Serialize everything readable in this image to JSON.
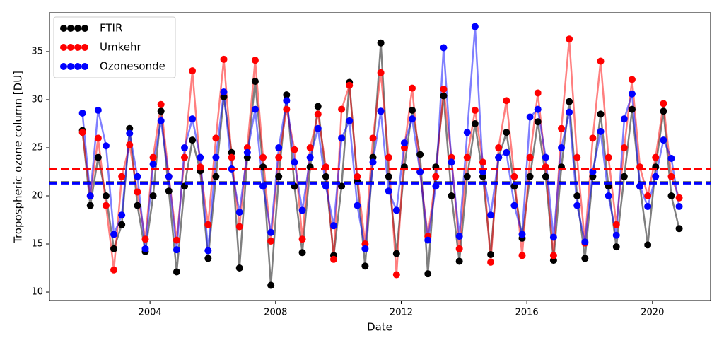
{
  "chart_data": {
    "type": "line-scatter",
    "x_label": "Date",
    "y_label": "Tropospheric ozone column [DU]",
    "xlim": [
      2000.8,
      2021.85
    ],
    "ylim": [
      9.12,
      39.04
    ],
    "xticks": [
      2004,
      2008,
      2012,
      2016,
      2020
    ],
    "yticks": [
      10,
      15,
      20,
      25,
      30,
      35
    ],
    "legend": "upper left",
    "x": [
      2001.85,
      2002.1,
      2002.35,
      2002.6,
      2002.85,
      2003.1,
      2003.35,
      2003.6,
      2003.85,
      2004.1,
      2004.35,
      2004.6,
      2004.85,
      2005.1,
      2005.35,
      2005.6,
      2005.85,
      2006.1,
      2006.35,
      2006.6,
      2006.85,
      2007.1,
      2007.35,
      2007.6,
      2007.85,
      2008.1,
      2008.35,
      2008.6,
      2008.85,
      2009.1,
      2009.35,
      2009.6,
      2009.85,
      2010.1,
      2010.35,
      2010.6,
      2010.85,
      2011.1,
      2011.35,
      2011.6,
      2011.85,
      2012.1,
      2012.35,
      2012.6,
      2012.85,
      2013.1,
      2013.35,
      2013.6,
      2013.85,
      2014.1,
      2014.35,
      2014.6,
      2014.85,
      2015.1,
      2015.35,
      2015.6,
      2015.85,
      2016.1,
      2016.35,
      2016.6,
      2016.85,
      2017.1,
      2017.35,
      2017.6,
      2017.85,
      2018.1,
      2018.35,
      2018.6,
      2018.85,
      2019.1,
      2019.35,
      2019.6,
      2019.85,
      2020.1,
      2020.35,
      2020.6,
      2020.85
    ],
    "series": [
      {
        "name": "FTIR",
        "color": "#000000",
        "values": [
          26.8,
          19,
          24,
          20,
          14.5,
          17,
          27,
          19,
          14.2,
          20,
          28.8,
          20.5,
          12.1,
          21,
          25.8,
          22.6,
          13.5,
          22,
          30.3,
          24.5,
          12.5,
          24,
          31.9,
          23,
          10.7,
          22,
          30.5,
          21,
          14.1,
          23,
          29.3,
          22,
          13.8,
          21,
          31.8,
          21.5,
          12.7,
          24,
          35.9,
          22,
          14,
          23,
          28.9,
          24.3,
          11.9,
          23,
          30.4,
          20,
          13.2,
          22,
          27.5,
          22,
          13.9,
          24,
          26.6,
          21,
          15.6,
          22,
          27.7,
          22,
          13.3,
          23,
          29.8,
          20,
          13.5,
          22,
          28.5,
          21,
          14.7,
          22,
          29,
          21,
          14.9,
          23,
          28.8,
          20,
          16.6
        ]
      },
      {
        "name": "Umkehr",
        "color": "#ff0000",
        "values": [
          26.6,
          20,
          26,
          19,
          12.3,
          22,
          25.3,
          20.4,
          15.5,
          24,
          29.5,
          22,
          15.4,
          24,
          33,
          23,
          17,
          26,
          34.2,
          24,
          16.8,
          25,
          34.1,
          24,
          15.3,
          24,
          29,
          24.8,
          15.5,
          25,
          28.5,
          23,
          13.4,
          29,
          31.5,
          22,
          15,
          26,
          32.8,
          24,
          11.8,
          25,
          31.2,
          22.5,
          15.8,
          22,
          31.1,
          24,
          14.5,
          24,
          28.9,
          23.5,
          13.1,
          25,
          29.9,
          22,
          13.8,
          24,
          30.7,
          23,
          13.8,
          27,
          36.3,
          24,
          15.1,
          26,
          34,
          24,
          17,
          25,
          32.1,
          23,
          20,
          24,
          29.6,
          22,
          19.8
        ]
      },
      {
        "name": "Ozonesonde",
        "color": "#0000ff",
        "values": [
          28.6,
          20,
          28.9,
          25.2,
          16,
          18,
          26.5,
          22,
          14.5,
          23.3,
          27.8,
          22,
          14.4,
          25,
          28,
          24,
          14.3,
          24,
          30.8,
          22.8,
          18.3,
          24.5,
          29,
          21,
          16.2,
          25,
          29.9,
          23.5,
          18.5,
          24,
          27,
          21,
          16.9,
          26,
          27.8,
          19,
          14.5,
          23.5,
          28.8,
          20.5,
          18.5,
          25.5,
          28,
          22.5,
          15.4,
          21,
          35.4,
          23.5,
          15.8,
          26.6,
          37.6,
          22.5,
          18,
          24,
          24.5,
          19,
          16,
          28.2,
          29,
          24,
          15.7,
          25,
          28.7,
          19,
          15.2,
          22.5,
          26.7,
          20,
          15.9,
          28,
          30.6,
          21,
          18.9,
          22,
          25.8,
          23.9,
          18.9
        ]
      }
    ],
    "mean_lines": [
      {
        "value": 22.8,
        "color": "#ff0000"
      },
      {
        "value": 21.4,
        "color": "#000000"
      },
      {
        "value": 21.3,
        "color": "#0000ff"
      }
    ]
  }
}
